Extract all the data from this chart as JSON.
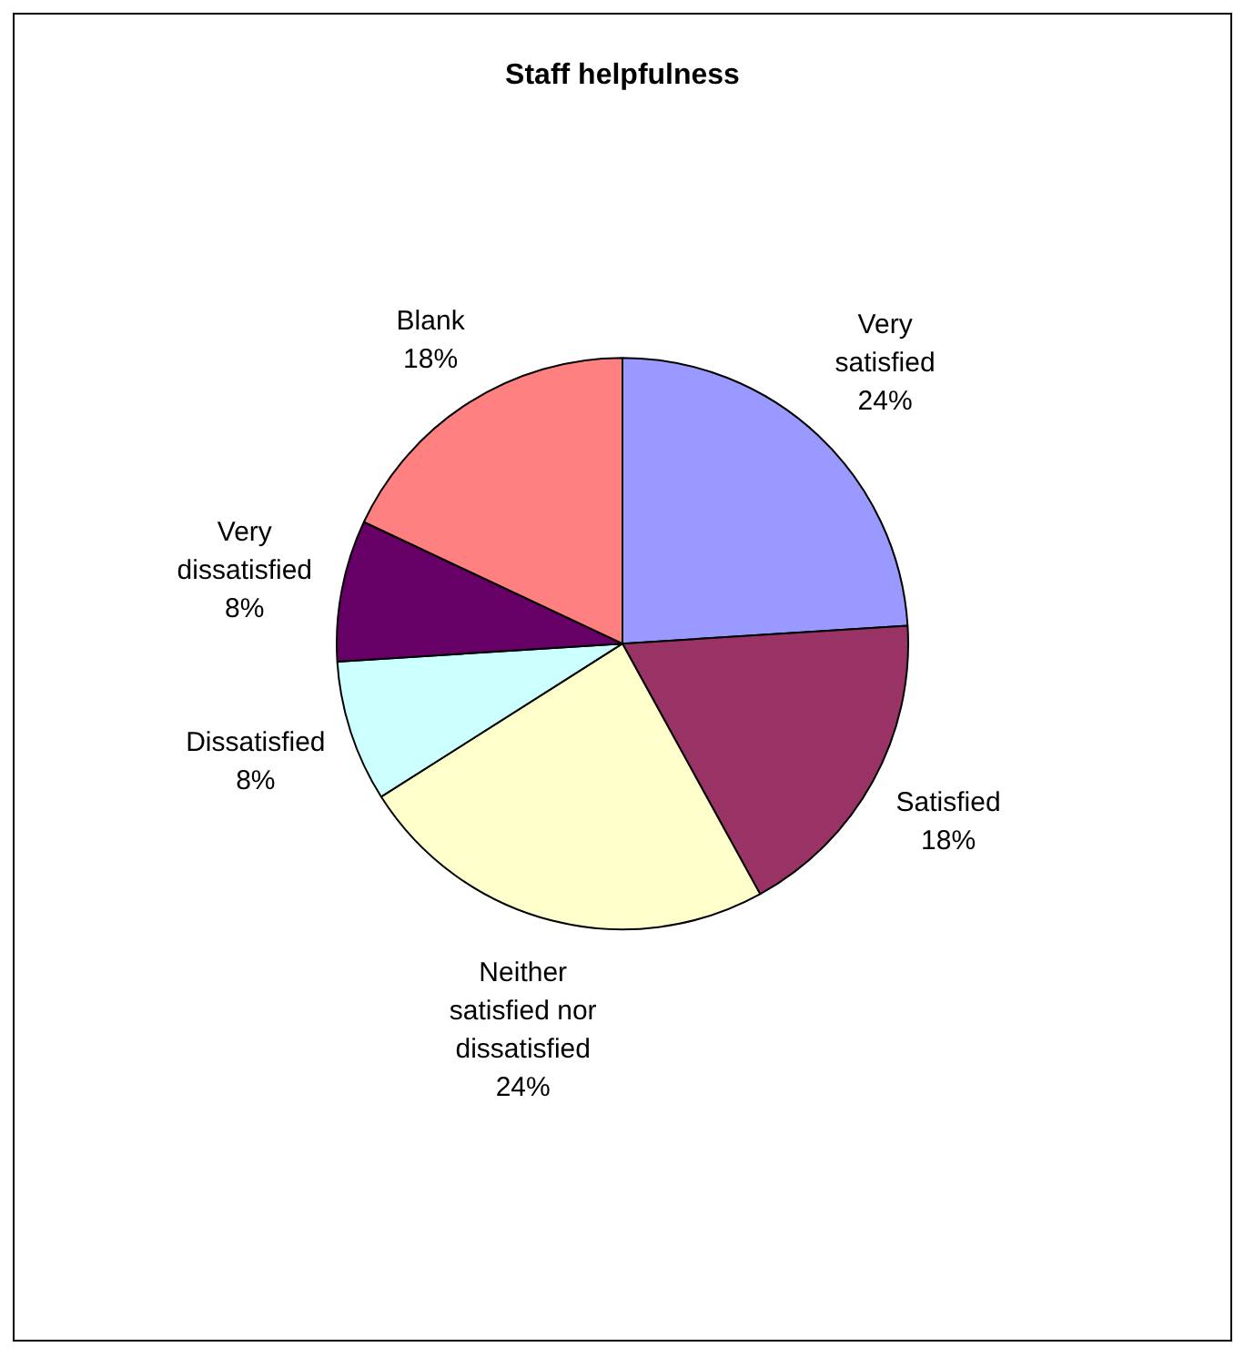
{
  "chart_data": {
    "type": "pie",
    "title": "Staff helpfulness",
    "categories": [
      "Very satisfied",
      "Satisfied",
      "Neither satisfied nor dissatisfied",
      "Dissatisfied",
      "Very dissatisfied",
      "Blank"
    ],
    "values": [
      24,
      18,
      24,
      8,
      8,
      18
    ],
    "colors": [
      "#9999ff",
      "#993366",
      "#ffffcc",
      "#ccffff",
      "#660066",
      "#ff8080"
    ],
    "value_labels": [
      "24%",
      "18%",
      "24%",
      "8%",
      "8%",
      "18%"
    ],
    "legend": false
  }
}
